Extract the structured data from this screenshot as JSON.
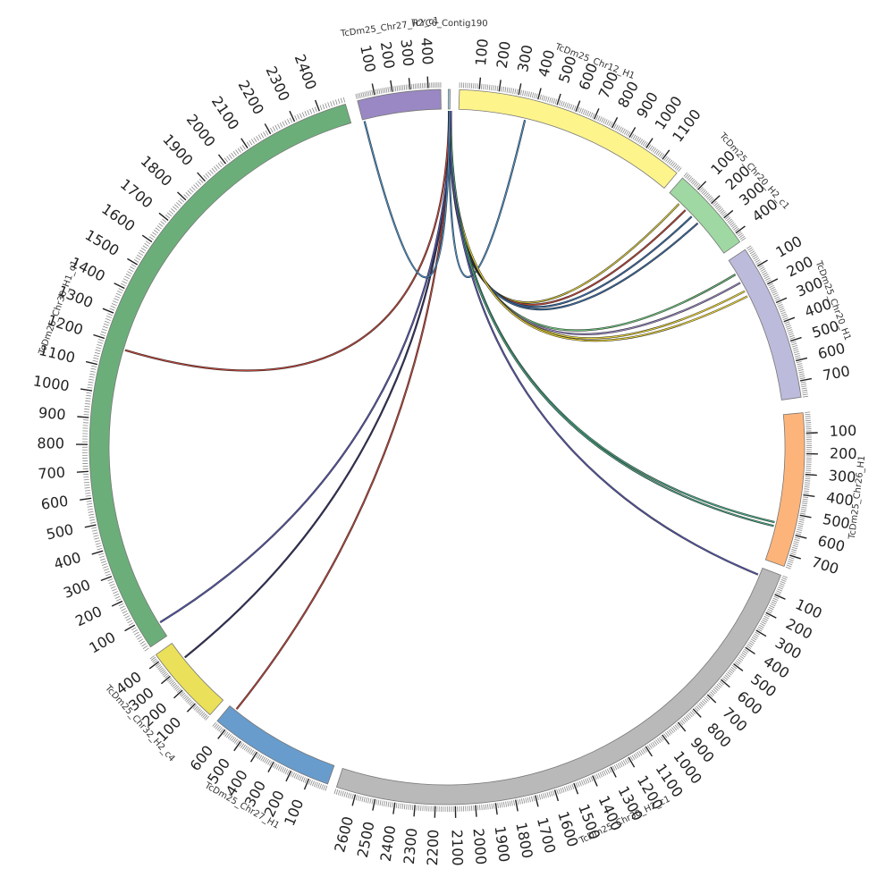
{
  "chart_data": {
    "type": "circos",
    "title": "",
    "chromosomes": [
      {
        "label": "TcYC6_Contig190",
        "color": "#9ecbe0",
        "length": 10,
        "tick_labels": []
      },
      {
        "label": "TcDm25_Chr12_H1",
        "color": "#fef48c",
        "length": 1200,
        "tick_labels": [
          "100",
          "200",
          "300",
          "400",
          "500",
          "600",
          "700",
          "800",
          "900",
          "1000",
          "1100"
        ]
      },
      {
        "label": "TcDm25_Chr20_H2_c1",
        "color": "#9fd8a2",
        "length": 450,
        "tick_labels": [
          "100",
          "200",
          "300",
          "400"
        ]
      },
      {
        "label": "TcDm25_Chr20_H1",
        "color": "#bcbbdc",
        "length": 780,
        "tick_labels": [
          "100",
          "200",
          "300",
          "400",
          "500",
          "600",
          "700"
        ]
      },
      {
        "label": "TcDm25_Chr26_H1",
        "color": "#fdb47a",
        "length": 760,
        "tick_labels": [
          "100",
          "200",
          "300",
          "400",
          "500",
          "600",
          "700"
        ]
      },
      {
        "label": "TcDm25_Chr30_H2_c1",
        "color": "#b9b9b9",
        "length": 2700,
        "tick_labels": [
          "100",
          "200",
          "300",
          "400",
          "500",
          "600",
          "700",
          "800",
          "900",
          "1000",
          "1100",
          "1200",
          "1300",
          "1400",
          "1500",
          "1600",
          "1700",
          "1800",
          "1900",
          "2000",
          "2100",
          "2200",
          "2300",
          "2400",
          "2500",
          "2600"
        ]
      },
      {
        "label": "TcDm25_Chr27_H1",
        "color": "#689ccc",
        "length": 660,
        "tick_labels": [
          "100",
          "200",
          "300",
          "400",
          "500",
          "600"
        ]
      },
      {
        "label": "TcDm25_Chr32_H2_c4",
        "color": "#ebe05a",
        "length": 440,
        "tick_labels": [
          "100",
          "200",
          "300",
          "400"
        ]
      },
      {
        "label": "TcDm25_Chr30_H1_c1",
        "color": "#6cae7a",
        "length": 2500,
        "tick_labels": [
          "100",
          "200",
          "300",
          "400",
          "500",
          "600",
          "700",
          "800",
          "900",
          "1000",
          "1100",
          "1200",
          "1300",
          "1400",
          "1500",
          "1600",
          "1700",
          "1800",
          "1900",
          "2000",
          "2100",
          "2200",
          "2300",
          "2400"
        ]
      },
      {
        "label": "TcDm25_Chr27_H2_c1",
        "color": "#9a88c4",
        "length": 470,
        "tick_labels": [
          "100",
          "200",
          "300",
          "400"
        ]
      }
    ],
    "links": [
      {
        "from": "TcYC6_Contig190",
        "to": "TcDm25_Chr12_H1",
        "pos": 360,
        "color": "#4a8fc7"
      },
      {
        "from": "TcYC6_Contig190",
        "to": "TcDm25_Chr20_H2_c1",
        "pos": 80,
        "color": "#d9c93c"
      },
      {
        "from": "TcYC6_Contig190",
        "to": "TcDm25_Chr20_H2_c1",
        "pos": 130,
        "color": "#c0453a"
      },
      {
        "from": "TcYC6_Contig190",
        "to": "TcDm25_Chr20_H2_c1",
        "pos": 180,
        "color": "#3a6ea8"
      },
      {
        "from": "TcYC6_Contig190",
        "to": "TcDm25_Chr20_H2_c1",
        "pos": 230,
        "color": "#3a6ea8"
      },
      {
        "from": "TcYC6_Contig190",
        "to": "TcDm25_Chr20_H1",
        "pos": 80,
        "color": "#6bbf7a"
      },
      {
        "from": "TcYC6_Contig190",
        "to": "TcDm25_Chr20_H1",
        "pos": 130,
        "color": "#9a88c4"
      },
      {
        "from": "TcYC6_Contig190",
        "to": "TcDm25_Chr20_H1",
        "pos": 180,
        "color": "#e6d23a"
      },
      {
        "from": "TcYC6_Contig190",
        "to": "TcDm25_Chr20_H1",
        "pos": 210,
        "color": "#e6d23a"
      },
      {
        "from": "TcYC6_Contig190",
        "to": "TcDm25_Chr26_H1",
        "pos": 560,
        "color": "#4aa884"
      },
      {
        "from": "TcYC6_Contig190",
        "to": "TcDm25_Chr26_H1",
        "pos": 580,
        "color": "#4aa884"
      },
      {
        "from": "TcYC6_Contig190",
        "to": "TcDm25_Chr30_H2_c1",
        "pos": 40,
        "color": "#5a5ab4"
      },
      {
        "from": "TcYC6_Contig190",
        "to": "TcDm25_Chr27_H1",
        "pos": 620,
        "color": "#c0453a"
      },
      {
        "from": "TcYC6_Contig190",
        "to": "TcDm25_Chr32_H2_c4",
        "pos": 330,
        "color": "#333366"
      },
      {
        "from": "TcYC6_Contig190",
        "to": "TcDm25_Chr30_H1_c1",
        "pos": 60,
        "color": "#5a5ab4"
      },
      {
        "from": "TcYC6_Contig190",
        "to": "TcDm25_Chr30_H1_c1",
        "pos": 1180,
        "color": "#c0453a"
      },
      {
        "from": "TcYC6_Contig190",
        "to": "TcDm25_Chr27_H2_c1",
        "pos": 10,
        "color": "#4a8fc7"
      }
    ]
  }
}
